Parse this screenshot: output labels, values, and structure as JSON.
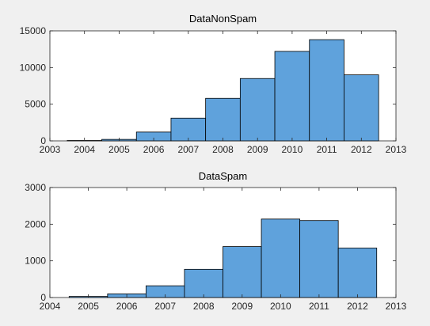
{
  "chart_data": [
    {
      "type": "bar",
      "title": "DataNonSpam",
      "xlabel": "",
      "ylabel": "",
      "xlim": [
        2003,
        2013
      ],
      "ylim": [
        0,
        15000
      ],
      "xticks": [
        "2003",
        "2004",
        "2005",
        "2006",
        "2007",
        "2008",
        "2009",
        "2010",
        "2011",
        "2012",
        "2013"
      ],
      "yticks": [
        "0",
        "5000",
        "10000",
        "15000"
      ],
      "bin_edges": [
        2003.5,
        2004.5,
        2005.5,
        2006.5,
        2007.5,
        2008.5,
        2009.5,
        2010.5,
        2011.5,
        2012.5
      ],
      "values": [
        50,
        200,
        1200,
        3100,
        5800,
        8500,
        12200,
        13800,
        9000
      ],
      "grid": false,
      "colors": {
        "bar": "#5fa2dc",
        "edge": "#000000"
      }
    },
    {
      "type": "bar",
      "title": "DataSpam",
      "xlabel": "",
      "ylabel": "",
      "xlim": [
        2004,
        2013
      ],
      "ylim": [
        0,
        3000
      ],
      "xticks": [
        "2004",
        "2005",
        "2006",
        "2007",
        "2008",
        "2009",
        "2010",
        "2011",
        "2012",
        "2013"
      ],
      "yticks": [
        "0",
        "1000",
        "2000",
        "3000"
      ],
      "bin_edges": [
        2004.5,
        2005.5,
        2006.5,
        2007.5,
        2008.5,
        2009.5,
        2010.5,
        2011.5,
        2012.5
      ],
      "values": [
        30,
        100,
        320,
        770,
        1390,
        2140,
        2100,
        1350
      ],
      "grid": false,
      "colors": {
        "bar": "#5fa2dc",
        "edge": "#000000"
      }
    }
  ]
}
